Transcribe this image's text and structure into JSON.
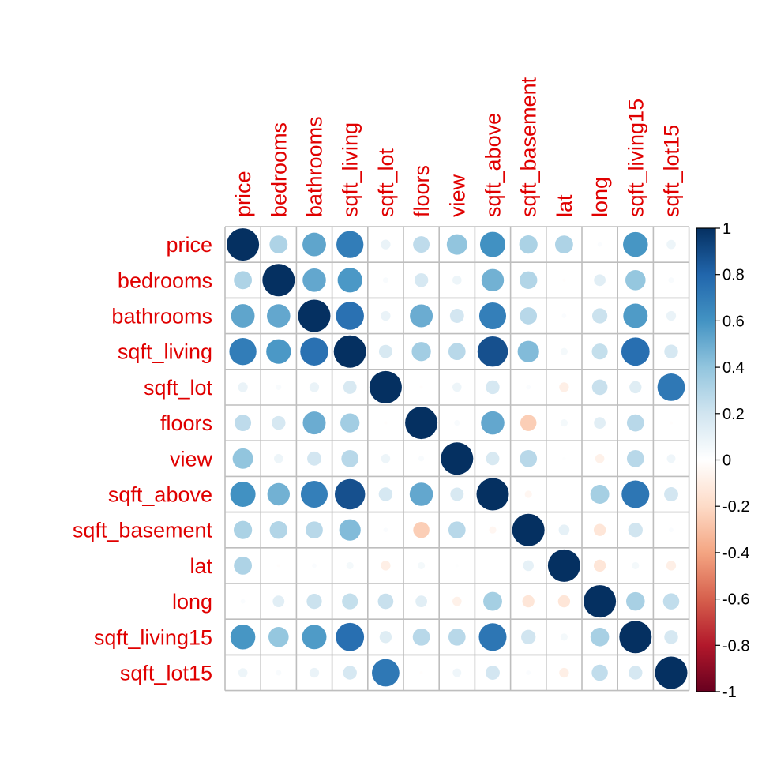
{
  "chart_data": {
    "type": "heatmap",
    "subtype": "correlation-circles",
    "variables": [
      "price",
      "bedrooms",
      "bathrooms",
      "sqft_living",
      "sqft_lot",
      "floors",
      "view",
      "sqft_above",
      "sqft_basement",
      "lat",
      "long",
      "sqft_living15",
      "sqft_lot15"
    ],
    "matrix": [
      [
        1.0,
        0.31,
        0.53,
        0.7,
        0.09,
        0.26,
        0.4,
        0.61,
        0.32,
        0.31,
        0.02,
        0.59,
        0.08
      ],
      [
        0.31,
        1.0,
        0.52,
        0.58,
        0.03,
        0.18,
        0.08,
        0.48,
        0.3,
        -0.01,
        0.13,
        0.39,
        0.03
      ],
      [
        0.53,
        0.52,
        1.0,
        0.75,
        0.09,
        0.5,
        0.19,
        0.69,
        0.28,
        0.02,
        0.22,
        0.57,
        0.09
      ],
      [
        0.7,
        0.58,
        0.75,
        1.0,
        0.17,
        0.35,
        0.28,
        0.88,
        0.44,
        0.05,
        0.24,
        0.76,
        0.18
      ],
      [
        0.09,
        0.03,
        0.09,
        0.17,
        1.0,
        -0.01,
        0.08,
        0.18,
        0.02,
        -0.09,
        0.23,
        0.14,
        0.72
      ],
      [
        0.26,
        0.18,
        0.5,
        0.35,
        -0.01,
        1.0,
        0.03,
        0.52,
        -0.25,
        0.05,
        0.13,
        0.28,
        -0.01
      ],
      [
        0.4,
        0.08,
        0.19,
        0.28,
        0.08,
        0.03,
        1.0,
        0.17,
        0.28,
        0.01,
        -0.08,
        0.28,
        0.07
      ],
      [
        0.61,
        0.48,
        0.69,
        0.88,
        0.18,
        0.52,
        0.17,
        1.0,
        -0.05,
        -0.0,
        0.34,
        0.73,
        0.19
      ],
      [
        0.32,
        0.3,
        0.28,
        0.44,
        0.02,
        -0.25,
        0.28,
        -0.05,
        1.0,
        0.11,
        -0.14,
        0.2,
        0.02
      ],
      [
        0.31,
        -0.01,
        0.02,
        0.05,
        -0.09,
        0.05,
        0.01,
        -0.0,
        0.11,
        1.0,
        -0.14,
        0.05,
        -0.09
      ],
      [
        0.02,
        0.13,
        0.22,
        0.24,
        0.23,
        0.13,
        -0.08,
        0.34,
        -0.14,
        -0.14,
        1.0,
        0.33,
        0.25
      ],
      [
        0.59,
        0.39,
        0.57,
        0.76,
        0.14,
        0.28,
        0.28,
        0.73,
        0.2,
        0.05,
        0.33,
        1.0,
        0.18
      ],
      [
        0.08,
        0.03,
        0.09,
        0.18,
        0.72,
        -0.01,
        0.07,
        0.19,
        0.02,
        -0.09,
        0.25,
        0.18,
        1.0
      ]
    ],
    "colorbar": {
      "ticks": [
        "1",
        "0.8",
        "0.6",
        "0.4",
        "0.2",
        "0",
        "-0.2",
        "-0.4",
        "-0.6",
        "-0.8",
        "-1"
      ],
      "range": [
        -1,
        1
      ]
    },
    "palette": [
      "#67001F",
      "#B2182B",
      "#D6604D",
      "#F4A582",
      "#FDDBC7",
      "#FFFFFF",
      "#D1E5F0",
      "#92C5DE",
      "#4393C3",
      "#2166AC",
      "#053061"
    ],
    "label_color": "#E00000",
    "grid_color": "#BEBEBE"
  }
}
